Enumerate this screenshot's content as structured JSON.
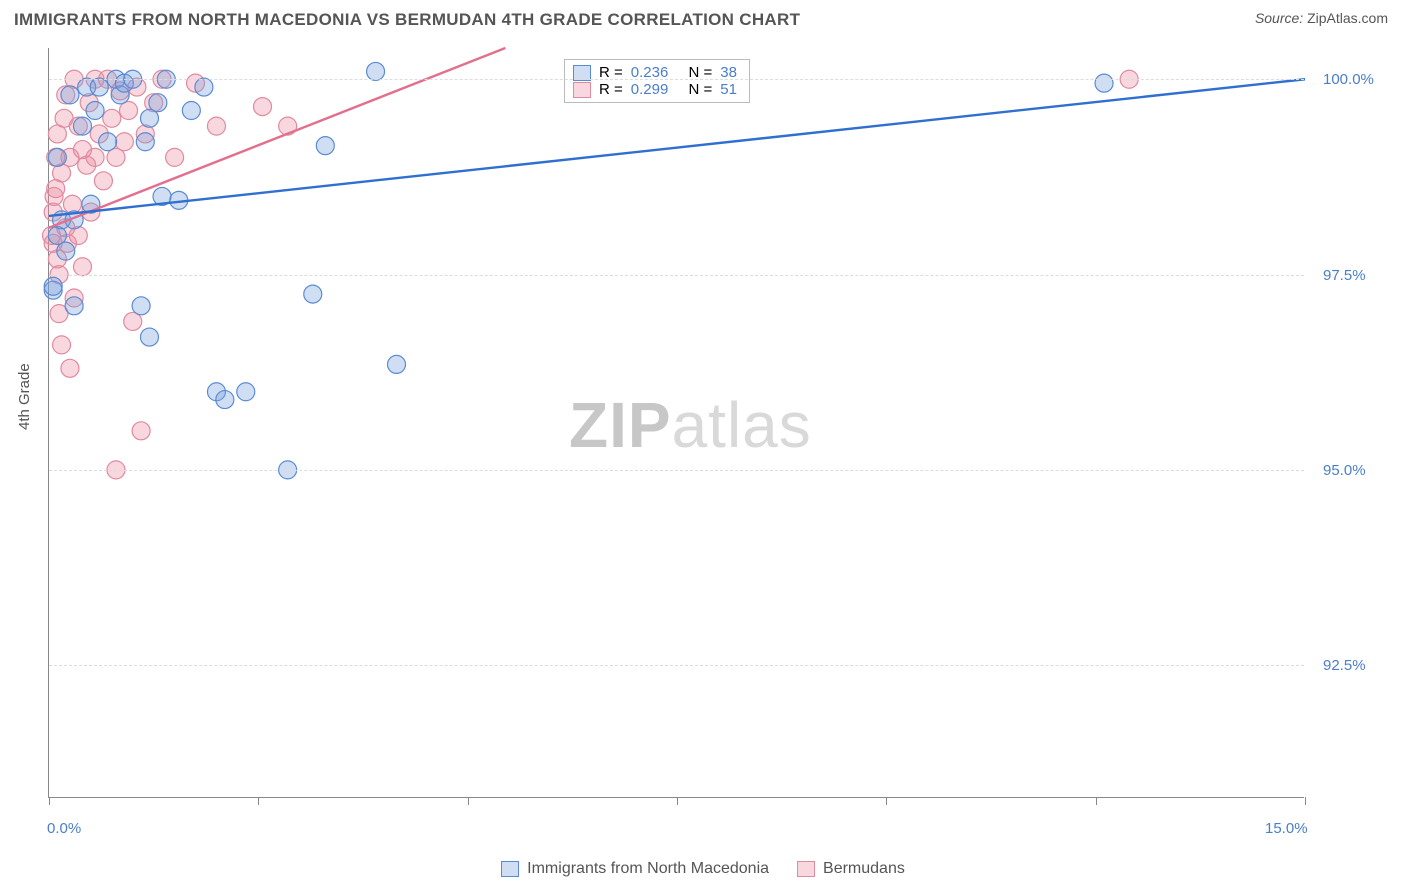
{
  "title": "IMMIGRANTS FROM NORTH MACEDONIA VS BERMUDAN 4TH GRADE CORRELATION CHART",
  "source_label": "Source:",
  "source_name": "ZipAtlas.com",
  "ylabel": "4th Grade",
  "watermark_a": "ZIP",
  "watermark_b": "atlas",
  "chart": {
    "type": "scatter",
    "xlim": [
      0.0,
      15.0
    ],
    "ylim": [
      90.8,
      100.4
    ],
    "ytick_values": [
      92.5,
      95.0,
      97.5,
      100.0
    ],
    "ytick_labels": [
      "92.5%",
      "95.0%",
      "97.5%",
      "100.0%"
    ],
    "xtick_values": [
      0.0,
      2.5,
      5.0,
      7.5,
      10.0,
      12.5,
      15.0
    ],
    "xtick_end_labels": [
      "0.0%",
      "15.0%"
    ],
    "grid_color": "#dcdcdc",
    "axis_color": "#888888",
    "background_color": "#ffffff",
    "marker_radius": 9,
    "marker_stroke_width": 1.2,
    "line_width": 2.4,
    "series": [
      {
        "key": "blue",
        "label": "Immigrants from North Macedonia",
        "fill": "rgba(120,160,220,0.35)",
        "stroke": "#5b8bd4",
        "line_color": "#2f6fd0",
        "R": "0.236",
        "N": "38",
        "trend": {
          "x1": 0.0,
          "y1": 98.25,
          "x2": 15.0,
          "y2": 100.0
        },
        "points": [
          [
            0.05,
            97.3
          ],
          [
            0.05,
            97.35
          ],
          [
            0.1,
            99.0
          ],
          [
            0.1,
            98.0
          ],
          [
            0.15,
            98.2
          ],
          [
            0.2,
            97.8
          ],
          [
            0.25,
            99.8
          ],
          [
            0.3,
            98.2
          ],
          [
            0.3,
            97.1
          ],
          [
            0.4,
            99.4
          ],
          [
            0.45,
            99.9
          ],
          [
            0.5,
            98.4
          ],
          [
            0.55,
            99.6
          ],
          [
            0.6,
            99.9
          ],
          [
            0.7,
            99.2
          ],
          [
            0.8,
            100.0
          ],
          [
            0.85,
            99.8
          ],
          [
            0.9,
            99.95
          ],
          [
            1.0,
            100.0
          ],
          [
            1.1,
            97.1
          ],
          [
            1.15,
            99.2
          ],
          [
            1.2,
            99.5
          ],
          [
            1.2,
            96.7
          ],
          [
            1.3,
            99.7
          ],
          [
            1.35,
            98.5
          ],
          [
            1.4,
            100.0
          ],
          [
            1.55,
            98.45
          ],
          [
            1.7,
            99.6
          ],
          [
            1.85,
            99.9
          ],
          [
            2.0,
            96.0
          ],
          [
            2.1,
            95.9
          ],
          [
            2.35,
            96.0
          ],
          [
            2.85,
            95.0
          ],
          [
            3.15,
            97.25
          ],
          [
            3.3,
            99.15
          ],
          [
            3.9,
            100.1
          ],
          [
            4.15,
            96.35
          ],
          [
            12.6,
            99.95
          ]
        ]
      },
      {
        "key": "pink",
        "label": "Bermudans",
        "fill": "rgba(235,140,160,0.35)",
        "stroke": "#e08aa0",
        "line_color": "#e36f8d",
        "R": "0.299",
        "N": "51",
        "trend": {
          "x1": 0.0,
          "y1": 98.1,
          "x2": 5.45,
          "y2": 100.4
        },
        "points": [
          [
            0.03,
            98.0
          ],
          [
            0.05,
            97.9
          ],
          [
            0.05,
            98.3
          ],
          [
            0.06,
            98.5
          ],
          [
            0.08,
            99.0
          ],
          [
            0.08,
            98.6
          ],
          [
            0.1,
            97.7
          ],
          [
            0.1,
            99.3
          ],
          [
            0.12,
            97.5
          ],
          [
            0.12,
            97.0
          ],
          [
            0.15,
            96.6
          ],
          [
            0.15,
            98.8
          ],
          [
            0.18,
            99.5
          ],
          [
            0.2,
            99.8
          ],
          [
            0.2,
            98.1
          ],
          [
            0.22,
            97.9
          ],
          [
            0.25,
            96.3
          ],
          [
            0.25,
            99.0
          ],
          [
            0.28,
            98.4
          ],
          [
            0.3,
            100.0
          ],
          [
            0.3,
            97.2
          ],
          [
            0.35,
            98.0
          ],
          [
            0.35,
            99.4
          ],
          [
            0.4,
            99.1
          ],
          [
            0.4,
            97.6
          ],
          [
            0.45,
            98.9
          ],
          [
            0.48,
            99.7
          ],
          [
            0.5,
            98.3
          ],
          [
            0.55,
            100.0
          ],
          [
            0.55,
            99.0
          ],
          [
            0.6,
            99.3
          ],
          [
            0.65,
            98.7
          ],
          [
            0.7,
            100.0
          ],
          [
            0.75,
            99.5
          ],
          [
            0.8,
            99.0
          ],
          [
            0.8,
            95.0
          ],
          [
            0.85,
            99.85
          ],
          [
            0.9,
            99.2
          ],
          [
            0.95,
            99.6
          ],
          [
            1.0,
            96.9
          ],
          [
            1.05,
            99.9
          ],
          [
            1.1,
            95.5
          ],
          [
            1.15,
            99.3
          ],
          [
            1.25,
            99.7
          ],
          [
            1.35,
            100.0
          ],
          [
            1.5,
            99.0
          ],
          [
            1.75,
            99.95
          ],
          [
            2.0,
            99.4
          ],
          [
            2.55,
            99.65
          ],
          [
            2.85,
            99.4
          ],
          [
            12.9,
            100.0
          ]
        ]
      }
    ]
  },
  "legend_box": {
    "R_label": "R =",
    "N_label": "N ="
  }
}
